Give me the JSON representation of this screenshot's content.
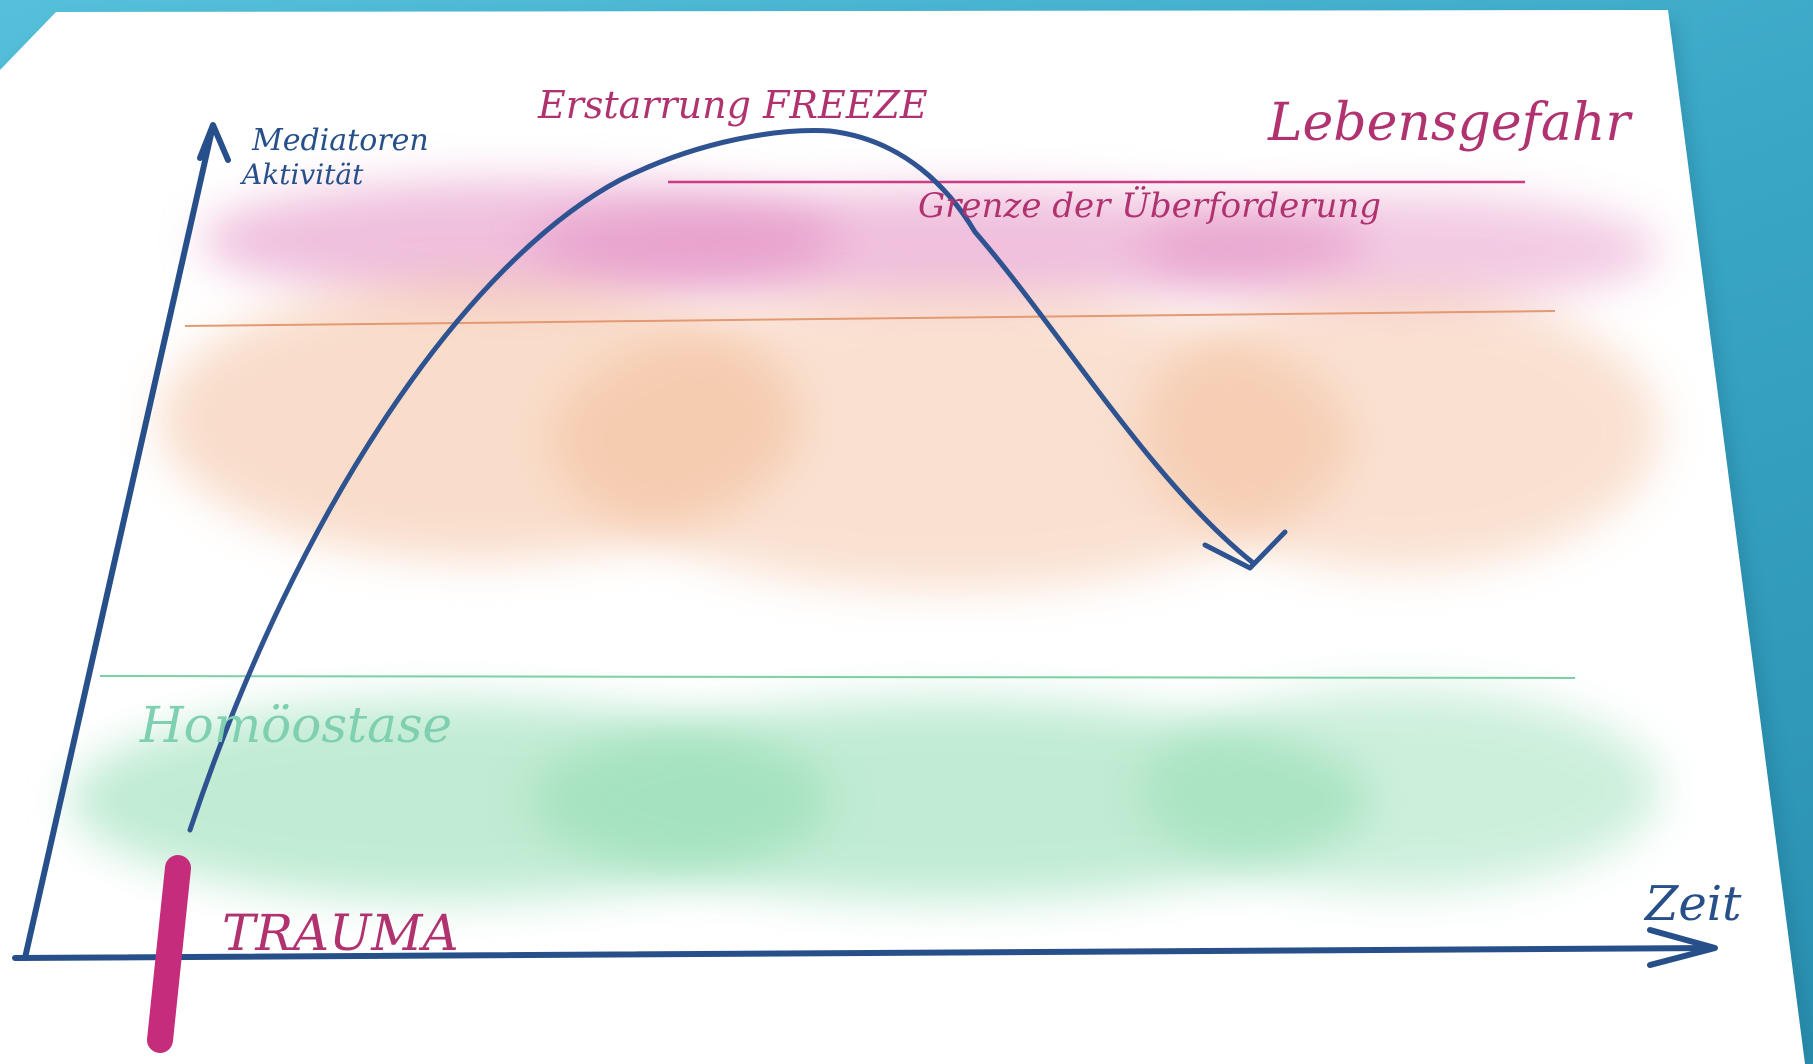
{
  "diagram": {
    "labels": {
      "y_axis_line1": "Mediatoren",
      "y_axis_line2": "Aktivität",
      "x_axis": "Zeit",
      "freeze": "Erstarrung FREEZE",
      "danger": "Lebensgefahr",
      "limit": "Grenze der Überforderung",
      "homeostasis": "Homöostase",
      "trauma": "TRAUMA"
    },
    "colors": {
      "axis": "#27508a",
      "curve": "#2e5390",
      "magenta": "#b0326f",
      "zone_danger": "#e38cc1",
      "zone_stress": "#f2b48c",
      "zone_homeostasis": "#8fdcb0",
      "homeostasis_text": "#7fd0b0",
      "line_limit": "#cc3b86",
      "line_stress": "#e39a72",
      "line_homeostasis": "#7cd0a5",
      "trauma_bar": "#c52d7c",
      "paper": "#ffffff",
      "background": "#3aa7c6"
    }
  }
}
